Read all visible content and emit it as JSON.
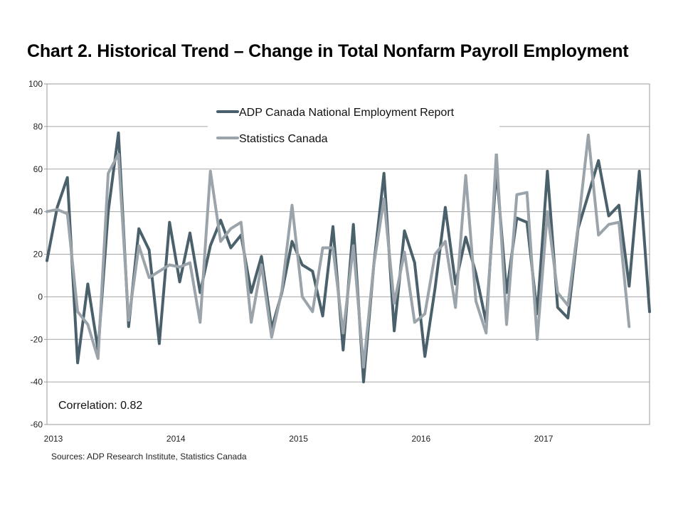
{
  "title": "Chart 2. Historical Trend – Change in Total Nonfarm Payroll Employment",
  "source": "Sources: ADP Research Institute, Statistics Canada",
  "colors": {
    "adp": "#4a606b",
    "statcan": "#9aa4aa",
    "grid": "#a6a6a6"
  },
  "chart_data": {
    "type": "line",
    "title": "Chart 2. Historical Trend – Change in Total Nonfarm Payroll Employment",
    "xlabel": "",
    "ylabel": "",
    "ylim": [
      -60,
      100
    ],
    "yticks": [
      -60,
      -40,
      -20,
      0,
      20,
      40,
      60,
      80,
      100
    ],
    "xticks": [
      {
        "label": "2013",
        "index": 0
      },
      {
        "label": "2014",
        "index": 12
      },
      {
        "label": "2015",
        "index": 24
      },
      {
        "label": "2016",
        "index": 36
      },
      {
        "label": "2017",
        "index": 48
      }
    ],
    "x_start": "2013-01",
    "grid": true,
    "legend": "top-center",
    "annotation": "Correlation: 0.82",
    "series": [
      {
        "name": "ADP Canada National Employment Report",
        "values": [
          17,
          42,
          56,
          -31,
          6,
          -25,
          40,
          77,
          -14,
          32,
          22,
          -22,
          35,
          7,
          30,
          2,
          24,
          36,
          23,
          29,
          2,
          19,
          -15,
          2,
          26,
          15,
          12,
          -9,
          33,
          -25,
          34,
          -40,
          15,
          58,
          -16,
          31,
          16,
          -28,
          4,
          42,
          6,
          28,
          11,
          -12,
          60,
          2,
          37,
          35,
          -8,
          59,
          -5,
          -10,
          32,
          48,
          64,
          38,
          43,
          5,
          59,
          -7
        ]
      },
      {
        "name": "Statistics Canada",
        "values": [
          40,
          41,
          39,
          -7,
          -13,
          -29,
          58,
          67,
          -11,
          24,
          9,
          12,
          15,
          14,
          16,
          -12,
          59,
          26,
          32,
          35,
          -12,
          15,
          -19,
          3,
          43,
          0,
          -7,
          23,
          23,
          -17,
          24,
          -33,
          15,
          46,
          -3,
          21,
          -12,
          -8,
          20,
          26,
          -5,
          57,
          -2,
          -17,
          68,
          -13,
          48,
          49,
          -20,
          40,
          2,
          -4,
          33,
          76,
          29,
          34,
          35,
          -14
        ]
      }
    ]
  }
}
